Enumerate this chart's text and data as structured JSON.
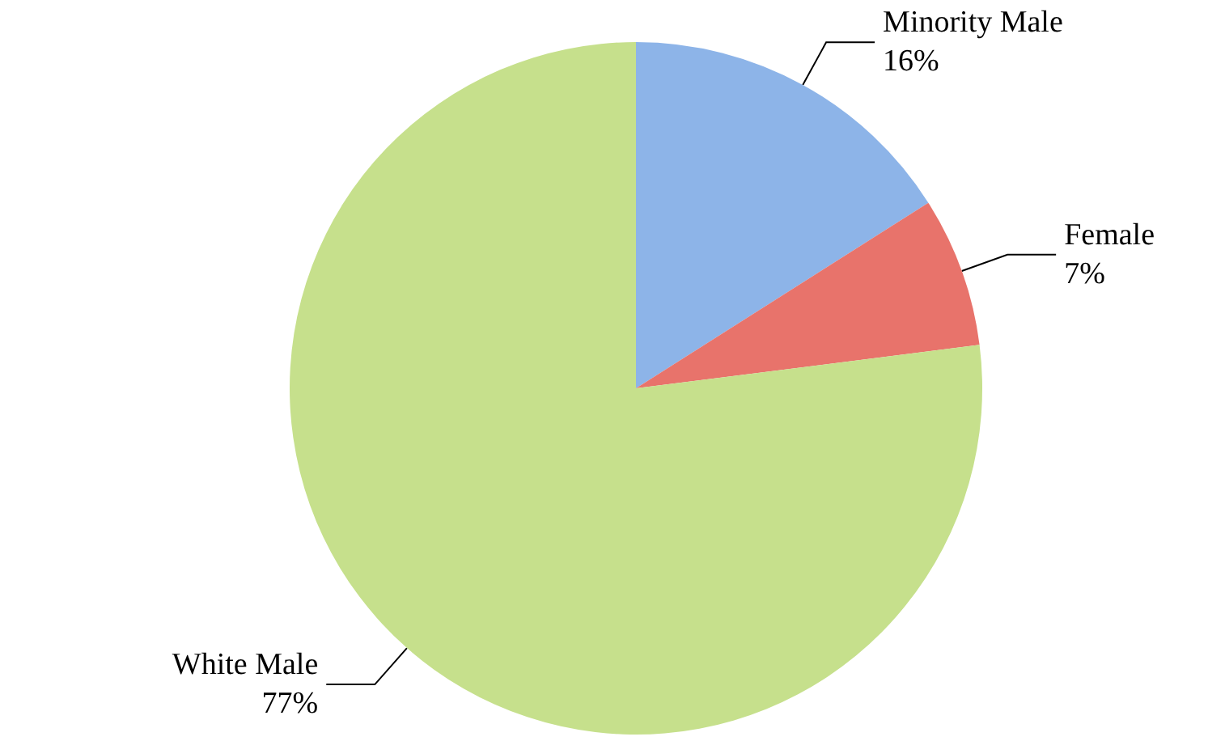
{
  "chart_data": {
    "type": "pie",
    "categories": [
      "Minority Male",
      "Female",
      "White Male"
    ],
    "values": [
      16,
      7,
      77
    ],
    "value_labels": [
      "16%",
      "7%",
      "77%"
    ],
    "colors": [
      "#8db4e8",
      "#e8736b",
      "#c6e08c"
    ],
    "legend": false
  }
}
